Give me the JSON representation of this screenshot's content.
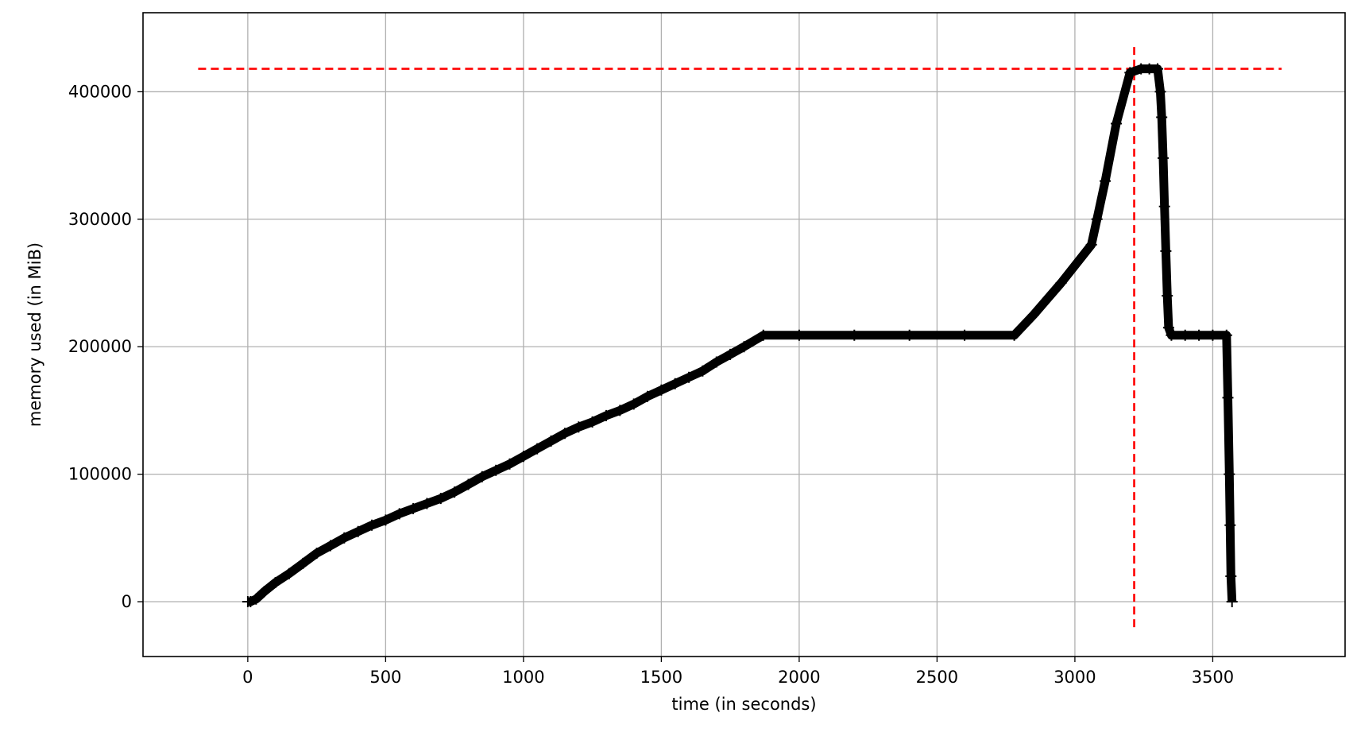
{
  "chart_data": {
    "type": "line",
    "title": "",
    "xlabel": "time (in seconds)",
    "ylabel": "memory used (in MiB)",
    "xlim": [
      -380,
      3980
    ],
    "ylim": [
      -43000,
      462000
    ],
    "xticks": [
      0,
      500,
      1000,
      1500,
      2000,
      2500,
      3000,
      3500
    ],
    "yticks": [
      0,
      100000,
      200000,
      300000,
      400000
    ],
    "grid": true,
    "colors": {
      "series": "#000000",
      "reference": "#ff0000",
      "grid": "#b0b0b0"
    },
    "series": [
      {
        "marker": "+",
        "x": [
          0,
          10,
          30,
          60,
          100,
          150,
          200,
          250,
          300,
          350,
          400,
          450,
          500,
          550,
          600,
          650,
          700,
          750,
          800,
          850,
          900,
          950,
          1000,
          1050,
          1100,
          1150,
          1200,
          1250,
          1300,
          1350,
          1400,
          1450,
          1500,
          1550,
          1600,
          1650,
          1700,
          1750,
          1800,
          1870,
          2000,
          2200,
          2400,
          2600,
          2780,
          2850,
          2950,
          3060,
          3080,
          3110,
          3150,
          3200,
          3240,
          3270,
          3300,
          3310,
          3315,
          3320,
          3325,
          3330,
          3335,
          3340,
          3350,
          3400,
          3450,
          3500,
          3550,
          3555,
          3560,
          3563,
          3566,
          3570
        ],
        "y": [
          0,
          0,
          2000,
          8000,
          15000,
          22000,
          30000,
          38000,
          44000,
          50000,
          55000,
          60000,
          64000,
          69000,
          73000,
          77000,
          81000,
          86000,
          92000,
          98000,
          103000,
          108000,
          114000,
          120000,
          126000,
          132000,
          137000,
          141000,
          146000,
          150000,
          155000,
          161000,
          166000,
          171000,
          176000,
          181000,
          188000,
          194000,
          200000,
          209000,
          209000,
          209000,
          209000,
          209000,
          209000,
          225000,
          250000,
          280000,
          300000,
          330000,
          375000,
          415000,
          418000,
          418000,
          418000,
          400000,
          380000,
          348000,
          310000,
          275000,
          240000,
          215000,
          209000,
          209000,
          209000,
          209000,
          209000,
          160000,
          100000,
          60000,
          20000,
          0
        ]
      }
    ],
    "reference_lines": [
      {
        "orientation": "horizontal",
        "value": 418000,
        "from": -180,
        "to": 3750,
        "style": "dashed"
      },
      {
        "orientation": "vertical",
        "value": 3215,
        "from": -20000,
        "to": 437000,
        "style": "dashed"
      }
    ]
  }
}
